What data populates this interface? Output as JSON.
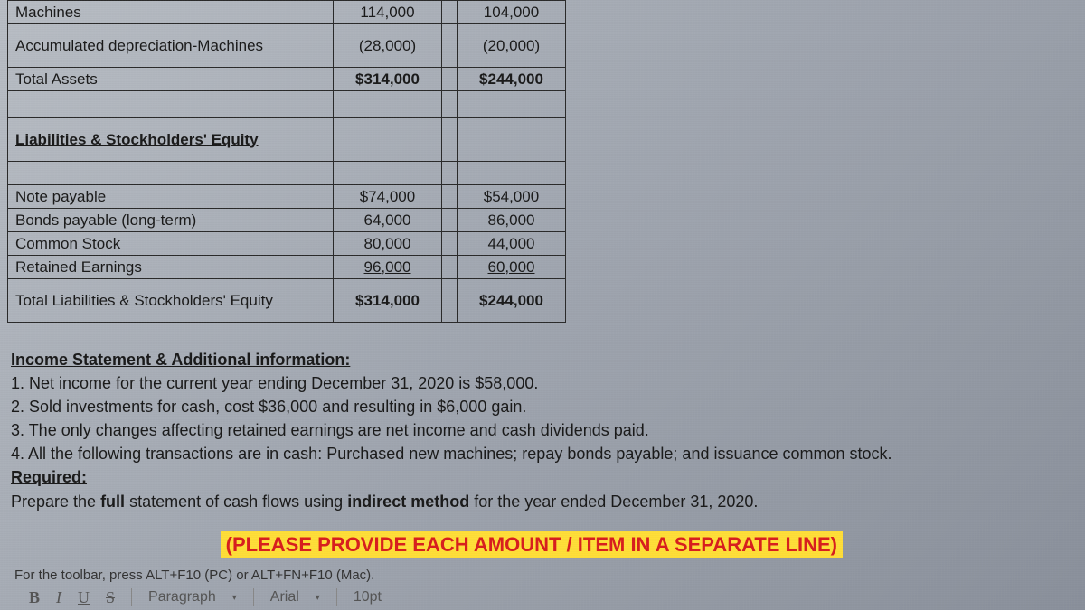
{
  "table": {
    "rows": [
      {
        "label": "Machines",
        "c1": "114,000",
        "c2": "104,000",
        "bold_label": false,
        "under_label": false,
        "bold_c1": false,
        "bold_c2": false,
        "under_c1": false,
        "under_c2": false,
        "tall": false
      },
      {
        "label": "Accumulated depreciation-Machines",
        "c1": "(28,000)",
        "c2": "(20,000)",
        "bold_label": false,
        "under_label": false,
        "bold_c1": false,
        "bold_c2": false,
        "under_c1": true,
        "under_c2": true,
        "tall": true
      },
      {
        "label": "Total Assets",
        "c1": "$314,000",
        "c2": "$244,000",
        "bold_label": false,
        "under_label": false,
        "bold_c1": true,
        "bold_c2": true,
        "under_c1": false,
        "under_c2": false,
        "tall": false
      }
    ],
    "spacer1": true,
    "section_header": {
      "label": "Liabilities & Stockholders' Equity",
      "bold_label": true,
      "under_label": true,
      "tall": true
    },
    "spacer2": true,
    "rows2": [
      {
        "label": "Note payable",
        "c1": "$74,000",
        "c2": "$54,000",
        "bold_label": false,
        "under_label": false,
        "bold_c1": false,
        "bold_c2": false,
        "under_c1": false,
        "under_c2": false,
        "tall": false
      },
      {
        "label": "Bonds payable (long-term)",
        "c1": "64,000",
        "c2": "86,000",
        "bold_label": false,
        "under_label": false,
        "bold_c1": false,
        "bold_c2": false,
        "under_c1": false,
        "under_c2": false,
        "tall": false
      },
      {
        "label": "Common Stock",
        "c1": "80,000",
        "c2": "44,000",
        "bold_label": false,
        "under_label": false,
        "bold_c1": false,
        "bold_c2": false,
        "under_c1": false,
        "under_c2": false,
        "tall": false
      },
      {
        "label": "Retained Earnings",
        "c1": "96,000",
        "c2": "60,000",
        "bold_label": false,
        "under_label": false,
        "bold_c1": false,
        "bold_c2": false,
        "under_c1": true,
        "under_c2": true,
        "tall": false
      },
      {
        "label": "Total Liabilities & Stockholders' Equity",
        "c1": "$314,000",
        "c2": "$244,000",
        "bold_label": false,
        "under_label": false,
        "bold_c1": true,
        "bold_c2": true,
        "under_c1": false,
        "under_c2": false,
        "tall": true
      }
    ],
    "col_widths": {
      "label": 360,
      "num": 120
    },
    "border_color": "#2a2a2a",
    "font_size": 17
  },
  "info": {
    "title": "Income Statement & Additional information:",
    "lines": [
      "1. Net income for the current year ending December 31, 2020 is $58,000.",
      "2. Sold investments for cash, cost $36,000 and resulting in $6,000 gain.",
      "3. The only changes affecting retained earnings are net income and cash dividends paid.",
      "4. All the following transactions are in cash: Purchased new machines; repay bonds payable; and issuance common stock."
    ],
    "required_label": "Required:",
    "required_text_before": "Prepare the ",
    "required_text_bold": "full",
    "required_text_mid": " statement of cash flows using ",
    "required_text_bold2": "indirect method",
    "required_text_after": " for the year ended December 31, 2020."
  },
  "highlight": "(PLEASE PROVIDE EACH AMOUNT / ITEM IN A SEPARATE LINE)",
  "toolbar_note": "For the toolbar, press ALT+F10 (PC) or ALT+FN+F10 (Mac).",
  "editor": {
    "b": "B",
    "i": "I",
    "u": "U",
    "s": "S",
    "style_label": "Paragraph",
    "font_label": "Arial",
    "size_label": "10pt"
  },
  "colors": {
    "highlight_bg": "#ffde38",
    "highlight_text": "#d81e1e",
    "body_text": "#1a1a1a"
  }
}
